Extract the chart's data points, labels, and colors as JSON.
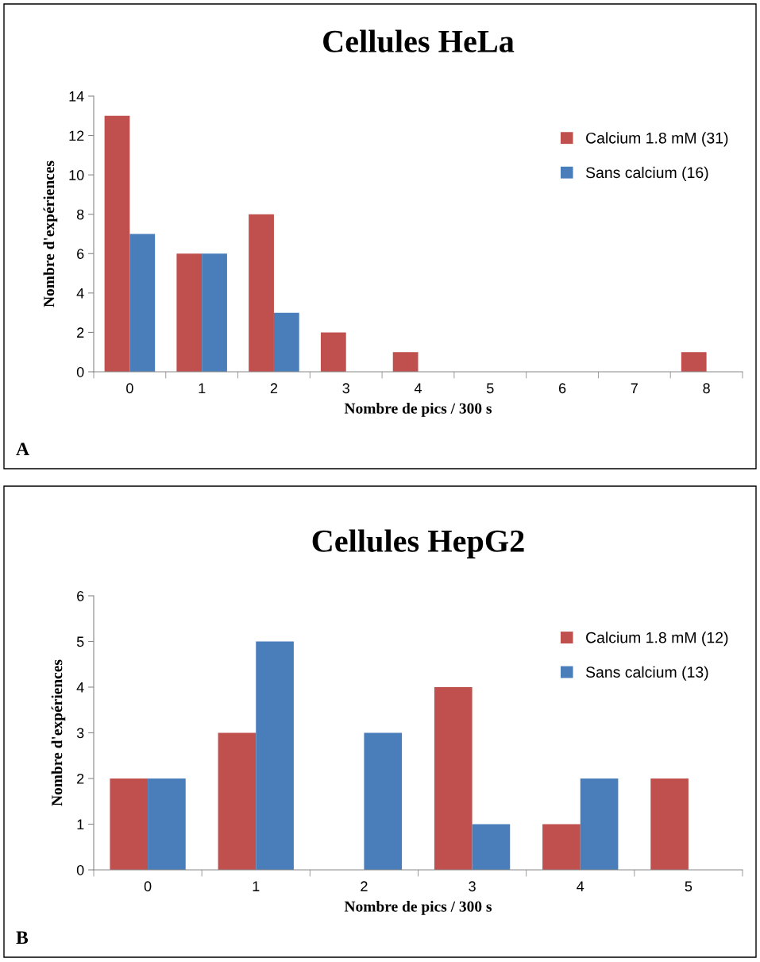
{
  "chart_data": [
    {
      "type": "bar",
      "title": "Cellules HeLa",
      "xlabel": "Nombre de pics / 300 s",
      "ylabel": "Nombre d'expériences",
      "categories": [
        "0",
        "1",
        "2",
        "3",
        "4",
        "5",
        "6",
        "7",
        "8"
      ],
      "series": [
        {
          "name": "Calcium 1.8 mM (31)",
          "color": "#c0504d",
          "values": [
            13,
            6,
            8,
            2,
            1,
            0,
            0,
            0,
            1
          ]
        },
        {
          "name": "Sans calcium (16)",
          "color": "#4a7ebb",
          "values": [
            7,
            6,
            3,
            0,
            0,
            0,
            0,
            0,
            0
          ]
        }
      ],
      "ylim": [
        0,
        14
      ],
      "yticks": [
        0,
        2,
        4,
        6,
        8,
        10,
        12,
        14
      ],
      "legend": "top right",
      "grid": false,
      "annotations": [
        "A"
      ]
    },
    {
      "type": "bar",
      "title": "Cellules HepG2",
      "xlabel": "Nombre de pics / 300 s",
      "ylabel": "Nombre d'expériences",
      "categories": [
        "0",
        "1",
        "2",
        "3",
        "4",
        "5"
      ],
      "series": [
        {
          "name": "Calcium 1.8 mM (12)",
          "color": "#c0504d",
          "values": [
            2,
            3,
            0,
            4,
            1,
            2
          ]
        },
        {
          "name": "Sans calcium (13)",
          "color": "#4a7ebb",
          "values": [
            2,
            5,
            3,
            1,
            2,
            0
          ]
        }
      ],
      "ylim": [
        0,
        6
      ],
      "yticks": [
        0,
        1,
        2,
        3,
        4,
        5,
        6
      ],
      "legend": "top right",
      "grid": false,
      "annotations": [
        "B"
      ]
    }
  ]
}
